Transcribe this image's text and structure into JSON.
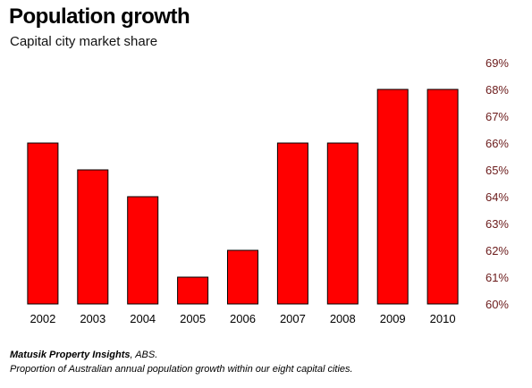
{
  "chart_data": {
    "type": "bar",
    "title": "Population growth",
    "subtitle": "Capital city market share",
    "categories": [
      "2002",
      "2003",
      "2004",
      "2005",
      "2006",
      "2007",
      "2008",
      "2009",
      "2010"
    ],
    "values": [
      66,
      65,
      64,
      61,
      62,
      66,
      66,
      68,
      68
    ],
    "unit": "%",
    "ylim": [
      60,
      69
    ],
    "yticks": [
      "60%",
      "61%",
      "62%",
      "63%",
      "64%",
      "65%",
      "66%",
      "67%",
      "68%",
      "69%"
    ],
    "y_axis_side": "right",
    "grid": false,
    "bar_color": "#ff0000",
    "tick_label_color": "#6b1b1b"
  },
  "footer": {
    "source_bold": "Matusik Property Insights",
    "source_rest": ", ABS.",
    "note": "Proportion of Australian annual population growth within our eight capital cities."
  }
}
